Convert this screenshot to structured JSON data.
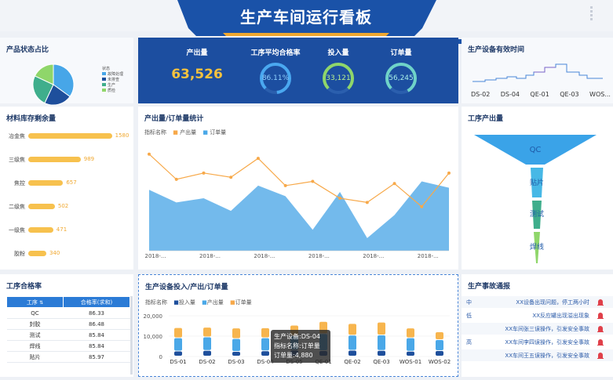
{
  "header": {
    "title": "生产车间运行看板"
  },
  "kpis": {
    "output_label": "产出量",
    "output_value": "63,526",
    "rate_label": "工序平均合格率",
    "rate_value": "86.11%",
    "input_label": "投入量",
    "input_value": "33,121",
    "order_label": "订单量",
    "order_value": "56,245"
  },
  "status_panel": {
    "title": "产品状态占比",
    "legend_title": "状态",
    "legend": [
      {
        "label": "故障处理",
        "color": "#47a6e8"
      },
      {
        "label": "未排查",
        "color": "#1e4f9c"
      },
      {
        "label": "生产",
        "color": "#3fae8c"
      },
      {
        "label": "质检",
        "color": "#8fd66a"
      }
    ],
    "chart_data": {
      "type": "pie",
      "values": [
        35,
        22,
        25,
        18
      ]
    }
  },
  "uptime_panel": {
    "title": "生产设备有效时间",
    "ticks": [
      "DS-02",
      "DS-04",
      "QE-01",
      "QE-03",
      "WOS..."
    ]
  },
  "stock_panel": {
    "title": "材料库存剩余量",
    "chart_data": {
      "type": "bar",
      "categories": [
        "冶金焦",
        "三级焦",
        "焦控",
        "二级焦",
        "一级焦",
        "胶粉"
      ],
      "values": [
        1580,
        989,
        657,
        502,
        471,
        340
      ]
    }
  },
  "trend_panel": {
    "title": "产出量/订单量统计",
    "legend_prefix": "指标名称",
    "legend": [
      "产出量",
      "订单量"
    ],
    "x_tick": "2018-...",
    "chart_data": {
      "type": "line",
      "series": [
        {
          "name": "产出量",
          "values": [
            92,
            68,
            74,
            70,
            88,
            62,
            66,
            50,
            46,
            64,
            42,
            74
          ]
        },
        {
          "name": "订单量",
          "values": [
            58,
            46,
            50,
            38,
            62,
            52,
            20,
            56,
            12,
            34,
            66,
            60
          ]
        }
      ]
    }
  },
  "funnel_panel": {
    "title": "工序产出量",
    "stages": [
      "QC",
      "贴片",
      "测试",
      "焊线"
    ]
  },
  "quality_panel": {
    "title": "工序合格率",
    "col_process": "工序",
    "col_rate": "合格率(求和)",
    "rows": [
      {
        "process": "QC",
        "rate": "86.33"
      },
      {
        "process": "封胶",
        "rate": "86.48"
      },
      {
        "process": "测试",
        "rate": "85.84"
      },
      {
        "process": "焊线",
        "rate": "85.84"
      },
      {
        "process": "贴片",
        "rate": "85.97"
      }
    ]
  },
  "device_panel": {
    "title": "生产设备投入/产出/订单量",
    "legend_prefix": "指标名称",
    "legend": [
      "投入量",
      "产出量",
      "订单量"
    ],
    "y_ticks": [
      "20,000",
      "10,000",
      "0"
    ],
    "chart_data": {
      "type": "bar",
      "categories": [
        "DS-01",
        "DS-02",
        "DS-03",
        "DS-04",
        "DS-05",
        "QE-01",
        "QE-02",
        "QE-03",
        "WOS-01",
        "WOS-02"
      ],
      "ylim": [
        0,
        20000
      ],
      "series": [
        {
          "name": "投入量",
          "values": [
            2500,
            2800,
            2300,
            2600,
            3000,
            2700,
            2900,
            2800,
            2400,
            2700
          ]
        },
        {
          "name": "产出量",
          "values": [
            6500,
            6600,
            6300,
            6400,
            7000,
            8300,
            7400,
            7600,
            6600,
            5400
          ]
        },
        {
          "name": "订单量",
          "values": [
            5000,
            4800,
            5200,
            4880,
            5200,
            6000,
            5700,
            6300,
            4800,
            3800
          ]
        }
      ]
    },
    "tooltip": {
      "line1": "生产设备:DS-04",
      "line2": "指标名称:订单量",
      "line3": "订单量:4,880"
    }
  },
  "accident_panel": {
    "title": "生产事故通报",
    "rows": [
      {
        "level": "中",
        "text": "XX设备出现问题，停工两小时"
      },
      {
        "level": "低",
        "text": "XX反应罐出现溢出现象"
      },
      {
        "level": "",
        "text": "XX车间张三误操作，引发安全事故"
      },
      {
        "level": "高",
        "text": "XX车间李四误操作，引发安全事故"
      },
      {
        "level": "",
        "text": "XX车间王五误操作，引发安全事故"
      }
    ]
  }
}
